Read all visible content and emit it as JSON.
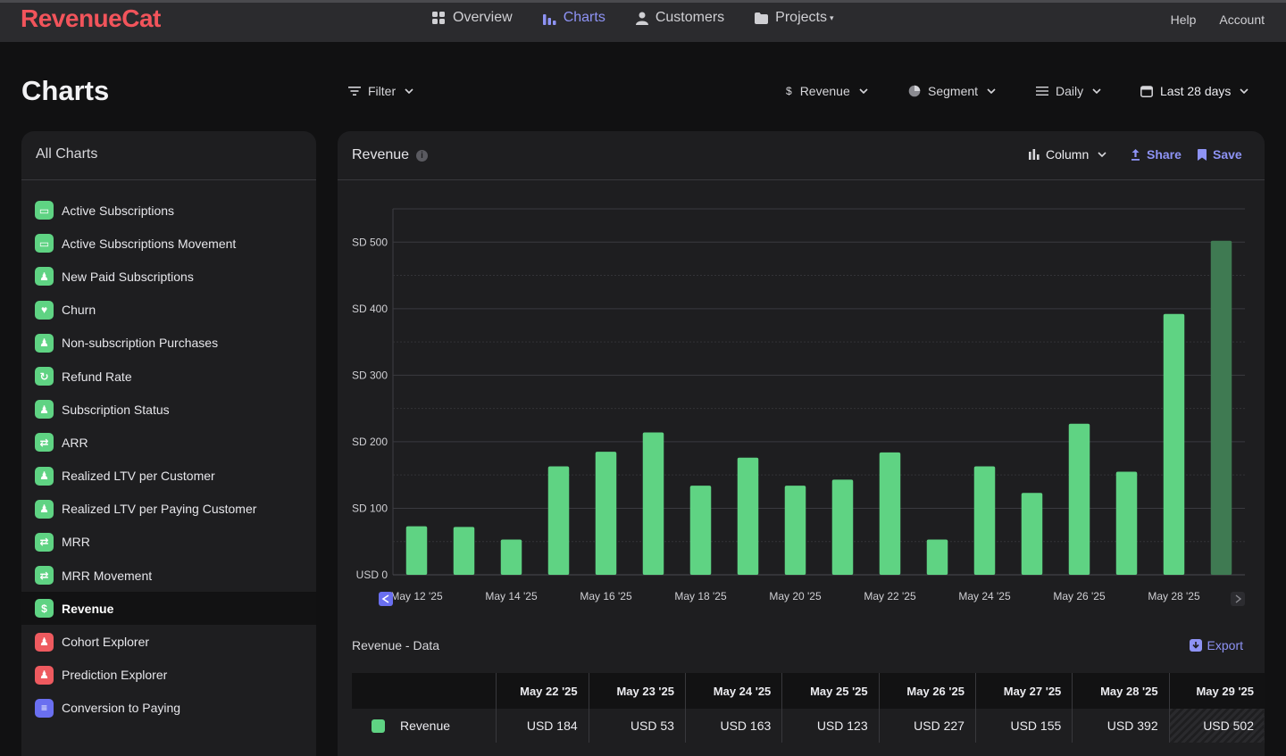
{
  "nav": {
    "logo": "RevenueCat",
    "items": [
      {
        "label": "Overview",
        "icon": "grid-icon"
      },
      {
        "label": "Charts",
        "icon": "bar-chart-icon",
        "active": true
      },
      {
        "label": "Customers",
        "icon": "person-icon"
      },
      {
        "label": "Projects",
        "icon": "folder-icon",
        "dropdown": true
      }
    ],
    "help": "Help",
    "account": "Account"
  },
  "page": {
    "title": "Charts"
  },
  "toolbar": {
    "filter": "Filter",
    "metric": "Revenue",
    "segment": "Segment",
    "resolution": "Daily",
    "range": "Last 28 days"
  },
  "sidebar": {
    "title": "All Charts",
    "items": [
      {
        "label": "Active Subscriptions",
        "icon": "calendar-icon",
        "color": "#5fd383"
      },
      {
        "label": "Active Subscriptions Movement",
        "icon": "calendar-icon",
        "color": "#5fd383"
      },
      {
        "label": "New Paid Subscriptions",
        "icon": "person-add-icon",
        "color": "#5fd383"
      },
      {
        "label": "Churn",
        "icon": "broken-heart-icon",
        "color": "#5fd383"
      },
      {
        "label": "Non-subscription Purchases",
        "icon": "person-icon",
        "color": "#5fd383"
      },
      {
        "label": "Refund Rate",
        "icon": "refresh-icon",
        "color": "#5fd383"
      },
      {
        "label": "Subscription Status",
        "icon": "person-icon",
        "color": "#5fd383"
      },
      {
        "label": "ARR",
        "icon": "cycle-icon",
        "color": "#5fd383"
      },
      {
        "label": "Realized LTV per Customer",
        "icon": "person-icon",
        "color": "#5fd383"
      },
      {
        "label": "Realized LTV per Paying Customer",
        "icon": "person-icon",
        "color": "#5fd383"
      },
      {
        "label": "MRR",
        "icon": "cycle-icon",
        "color": "#5fd383"
      },
      {
        "label": "MRR Movement",
        "icon": "cycle-icon",
        "color": "#5fd383"
      },
      {
        "label": "Revenue",
        "icon": "dollar-icon",
        "color": "#5fd383",
        "active": true
      },
      {
        "label": "Cohort Explorer",
        "icon": "people-icon",
        "color": "#ee5a5f"
      },
      {
        "label": "Prediction Explorer",
        "icon": "people-icon",
        "color": "#ee5a5f"
      },
      {
        "label": "Conversion to Paying",
        "icon": "funnel-icon",
        "color": "#6a6ff0"
      }
    ]
  },
  "panel": {
    "title": "Revenue",
    "chart_type": "Column",
    "share": "Share",
    "save": "Save"
  },
  "chart_data": {
    "type": "bar",
    "categories": [
      "May 12 '25",
      "May 13 '25",
      "May 14 '25",
      "May 15 '25",
      "May 16 '25",
      "May 17 '25",
      "May 18 '25",
      "May 19 '25",
      "May 20 '25",
      "May 21 '25",
      "May 22 '25",
      "May 23 '25",
      "May 24 '25",
      "May 25 '25",
      "May 26 '25",
      "May 27 '25",
      "May 28 '25",
      "May 29 '25"
    ],
    "values": [
      73,
      72,
      53,
      163,
      185,
      214,
      134,
      176,
      134,
      143,
      184,
      53,
      163,
      123,
      227,
      155,
      392,
      502
    ],
    "x_tick_labels": [
      "May 12 '25",
      "May 14 '25",
      "May 16 '25",
      "May 18 '25",
      "May 20 '25",
      "May 22 '25",
      "May 24 '25",
      "May 26 '25",
      "May 28 '25"
    ],
    "y_tick_labels": [
      "USD 0",
      "SD 100",
      "SD 200",
      "SD 300",
      "SD 400",
      "SD 500"
    ],
    "y_ticks": [
      0,
      100,
      200,
      300,
      400,
      500
    ],
    "ylim": [
      0,
      550
    ],
    "series_color": "#5fd383",
    "incomplete_color": "#3f7a52",
    "grid": true
  },
  "data_table": {
    "title": "Revenue - Data",
    "export": "Export",
    "headers": [
      "May 22 '25",
      "May 23 '25",
      "May 24 '25",
      "May 25 '25",
      "May 26 '25",
      "May 27 '25",
      "May 28 '25",
      "May 29 '25"
    ],
    "rows": [
      {
        "label": "Revenue",
        "values": [
          "USD 184",
          "USD 53",
          "USD 163",
          "USD 123",
          "USD 227",
          "USD 155",
          "USD 392",
          "USD 502"
        ]
      }
    ]
  }
}
